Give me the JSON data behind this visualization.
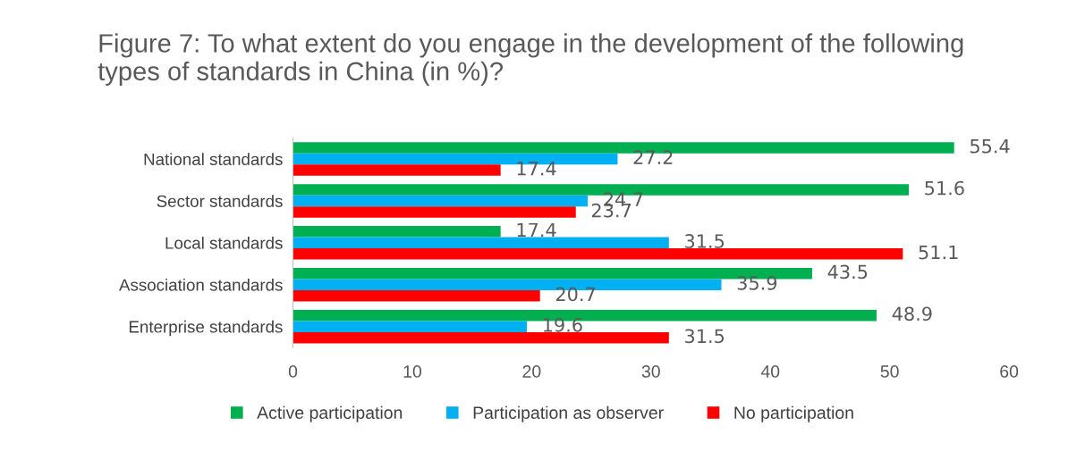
{
  "chart_data": {
    "type": "bar",
    "orientation": "horizontal",
    "title": "Figure 7: To what extent do you engage in the development of the following types of standards in China (in %)?",
    "categories": [
      "National standards",
      "Sector standards",
      "Local standards",
      "Association standards",
      "Enterprise standards"
    ],
    "series": [
      {
        "name": "Active participation",
        "color": "#00b050",
        "values": [
          55.4,
          51.6,
          17.4,
          43.5,
          48.9
        ]
      },
      {
        "name": "Participation as observer",
        "color": "#00b0f0",
        "values": [
          27.2,
          24.7,
          31.5,
          35.9,
          19.6
        ]
      },
      {
        "name": "No participation",
        "color": "#ff0000",
        "values": [
          17.4,
          23.7,
          51.1,
          20.7,
          31.5
        ]
      }
    ],
    "xlim": [
      0,
      60
    ],
    "xticks": [
      0,
      10,
      20,
      30,
      40,
      50,
      60
    ],
    "data_labels": true,
    "legend": "bottom",
    "grid": false
  }
}
